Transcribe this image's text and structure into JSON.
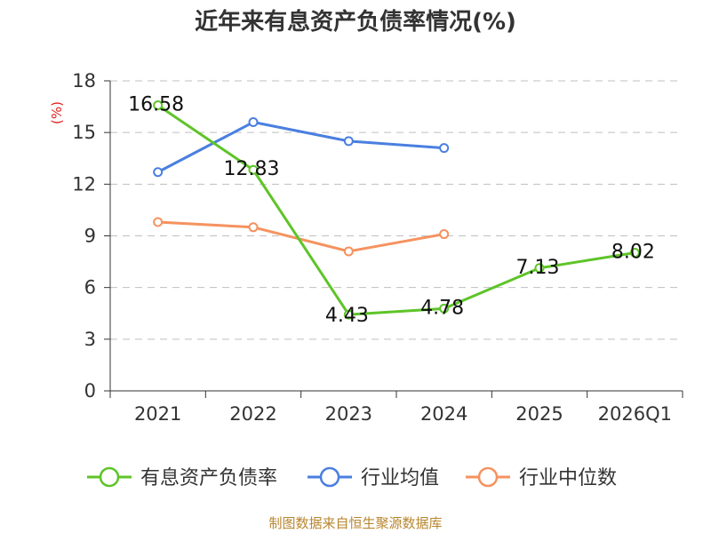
{
  "chart_data": {
    "type": "line",
    "title": "近年来有息资产负债率情况(%)",
    "ylabel": "(%)",
    "xlabel": "",
    "ylim": [
      0,
      18
    ],
    "yticks": [
      0,
      3,
      6,
      9,
      12,
      15,
      18
    ],
    "categories": [
      "2021",
      "2022",
      "2023",
      "2024",
      "2025",
      "2026Q1"
    ],
    "grid": true,
    "legend": "bottom",
    "series": [
      {
        "name": "有息资产负债率",
        "color": "#5ec429",
        "values": [
          16.58,
          12.83,
          4.43,
          4.78,
          7.13,
          8.02
        ],
        "labels": [
          "16.58",
          "12.83",
          "4.43",
          "4.78",
          "7.13",
          "8.02"
        ]
      },
      {
        "name": "行业均值",
        "color": "#4a7fe0",
        "values": [
          12.7,
          15.6,
          14.5,
          14.1,
          null,
          null
        ]
      },
      {
        "name": "行业中位数",
        "color": "#f5925f",
        "values": [
          9.8,
          9.5,
          8.1,
          9.1,
          null,
          null
        ]
      }
    ]
  },
  "source": "制图数据来自恒生聚源数据库"
}
